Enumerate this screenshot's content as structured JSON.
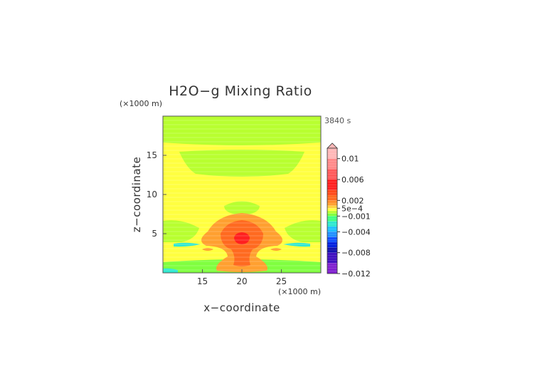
{
  "chart_data": {
    "type": "heatmap",
    "title": "H2O−g Mixing Ratio",
    "time_label": "3840 s",
    "xlabel": "x−coordinate",
    "ylabel": "z−coordinate",
    "x_unit": "(×1000 m)",
    "y_unit": "(×1000 m)",
    "xlim": [
      10,
      30
    ],
    "ylim": [
      0,
      20
    ],
    "x_ticks": [
      15,
      20,
      25
    ],
    "y_ticks": [
      5,
      10,
      15
    ],
    "colorbar": {
      "min": -0.012,
      "max": 0.012,
      "tick_values": [
        0.01,
        0.006,
        0.002,
        0.0005,
        -0.001,
        -0.004,
        -0.008,
        -0.012
      ],
      "tick_labels": [
        "0.01",
        "0.006",
        "0.002",
        "5e−4",
        "−0.001",
        "−0.004",
        "−0.008",
        "−0.012"
      ],
      "extend": "max",
      "colors": [
        {
          "from": 0.01,
          "to": 0.012,
          "color": "#ffb8b8"
        },
        {
          "from": 0.008,
          "to": 0.01,
          "color": "#ff8a8a"
        },
        {
          "from": 0.006,
          "to": 0.008,
          "color": "#ff5a5a"
        },
        {
          "from": 0.004,
          "to": 0.006,
          "color": "#ff2020"
        },
        {
          "from": 0.003,
          "to": 0.004,
          "color": "#ff4a1a"
        },
        {
          "from": 0.002,
          "to": 0.003,
          "color": "#ff6a20"
        },
        {
          "from": 0.0015,
          "to": 0.002,
          "color": "#ff8c2a"
        },
        {
          "from": 0.001,
          "to": 0.0015,
          "color": "#ffa030"
        },
        {
          "from": 0.0005,
          "to": 0.001,
          "color": "#ffd040"
        },
        {
          "from": 0.0,
          "to": 0.0005,
          "color": "#ffff40"
        },
        {
          "from": -0.0005,
          "to": 0.0,
          "color": "#b8ff30"
        },
        {
          "from": -0.001,
          "to": -0.0005,
          "color": "#80ff40"
        },
        {
          "from": -0.002,
          "to": -0.001,
          "color": "#40ff80"
        },
        {
          "from": -0.003,
          "to": -0.002,
          "color": "#30e8d0"
        },
        {
          "from": -0.004,
          "to": -0.003,
          "color": "#20c0ff"
        },
        {
          "from": -0.005,
          "to": -0.004,
          "color": "#2090ff"
        },
        {
          "from": -0.006,
          "to": -0.005,
          "color": "#1050ff"
        },
        {
          "from": -0.007,
          "to": -0.006,
          "color": "#0020e0"
        },
        {
          "from": -0.008,
          "to": -0.007,
          "color": "#1010b0"
        },
        {
          "from": -0.01,
          "to": -0.008,
          "color": "#4010c0"
        },
        {
          "from": -0.012,
          "to": -0.01,
          "color": "#8020d0"
        }
      ]
    },
    "regions": [
      {
        "label": "background",
        "value": 0.0003
      },
      {
        "label": "upper-green-band",
        "value": -0.0003
      },
      {
        "label": "top-green-band",
        "value": -0.0003
      },
      {
        "label": "central-plume-outer",
        "value": 0.0012
      },
      {
        "label": "central-plume-core",
        "value": 0.0025
      },
      {
        "label": "core-max",
        "value": 0.005
      },
      {
        "label": "low-cyan-streaks",
        "value": -0.002
      },
      {
        "label": "surface-layer",
        "value": -0.0008
      }
    ]
  }
}
